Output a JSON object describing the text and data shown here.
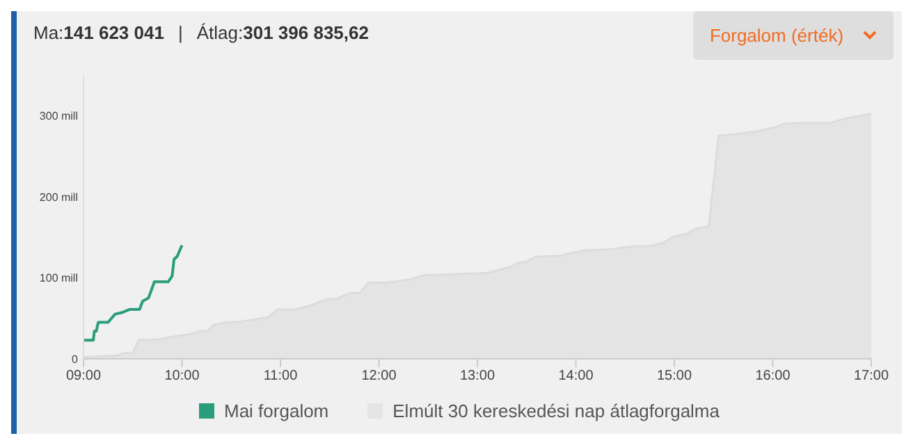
{
  "chart_data": {
    "type": "line",
    "annotations": [
      "Ma:141 623 041",
      "|",
      "Átlag:301 396 835,62",
      "Forgalom (érték)"
    ],
    "xlim": [
      9,
      17
    ],
    "xticks": [
      {
        "value": 9,
        "label": "09:00"
      },
      {
        "value": 10,
        "label": "10:00"
      },
      {
        "value": 11,
        "label": "11:00"
      },
      {
        "value": 12,
        "label": "12:00"
      },
      {
        "value": 13,
        "label": "13:00"
      },
      {
        "value": 14,
        "label": "14:00"
      },
      {
        "value": 15,
        "label": "15:00"
      },
      {
        "value": 16,
        "label": "16:00"
      },
      {
        "value": 17,
        "label": "17:00"
      }
    ],
    "ylim": [
      0,
      350
    ],
    "yticks": [
      0,
      {
        "value": 100,
        "label": "100 mill"
      },
      {
        "value": 200,
        "label": "200 mill"
      },
      {
        "value": 300,
        "label": "300 mill"
      }
    ],
    "grid": false,
    "legend": "bottom",
    "marker": "none",
    "line_style": "solid",
    "series": [
      {
        "name": "Mai forgalom",
        "color": "#2a9d7c",
        "type": "line",
        "x": [
          9.0,
          9.1,
          9.11,
          9.13,
          9.15,
          9.25,
          9.32,
          9.39,
          9.47,
          9.57,
          9.6,
          9.66,
          9.72,
          9.86,
          9.9,
          9.92,
          9.95,
          10.0
        ],
        "values": [
          23,
          23,
          34,
          34,
          45,
          45,
          55,
          57,
          61,
          61,
          71,
          75,
          95,
          95,
          102,
          123,
          126,
          140
        ]
      },
      {
        "name": "Elmúlt 30 kereskedési nap átlagforgalma",
        "color": "#e4e4e4",
        "type": "area",
        "x": [
          9.0,
          9.34,
          9.41,
          9.5,
          9.56,
          9.76,
          9.99,
          10.08,
          10.18,
          10.27,
          10.32,
          10.46,
          10.6,
          10.87,
          10.97,
          11.15,
          11.29,
          11.48,
          11.57,
          11.71,
          11.8,
          11.9,
          12.08,
          12.32,
          12.46,
          12.69,
          13.1,
          13.33,
          13.43,
          13.49,
          13.59,
          13.84,
          13.97,
          14.11,
          14.34,
          14.61,
          14.75,
          14.89,
          14.98,
          15.12,
          15.23,
          15.35,
          15.45,
          15.62,
          15.85,
          16.03,
          16.12,
          16.31,
          16.58,
          16.76,
          17.0
        ],
        "values": [
          2,
          4,
          7,
          7,
          23,
          24,
          29,
          30,
          34,
          35,
          42,
          45,
          46,
          51,
          61,
          61,
          65,
          74,
          74,
          81,
          81,
          94,
          94,
          98,
          103,
          104,
          106,
          113,
          119,
          119,
          126,
          127,
          131,
          134,
          135,
          139,
          139,
          143,
          150,
          154,
          161,
          163,
          275,
          277,
          281,
          286,
          290,
          291,
          291,
          297,
          302
        ]
      }
    ]
  }
}
